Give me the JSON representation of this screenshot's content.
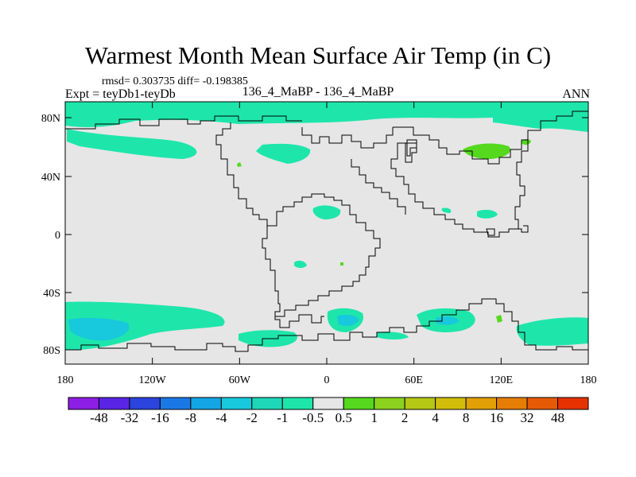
{
  "title": "Warmest Month Mean Surface Air Temp (in C)",
  "stats": "rmsd= 0.303735 diff= -0.198385",
  "experiment": "Expt = teyDb1-teyDb",
  "run_label": "136_4_MaBP - 136_4_MaBP",
  "season": "ANN",
  "map": {
    "lat_ticks": [
      "80N",
      "40N",
      "0",
      "40S",
      "80S"
    ],
    "lon_ticks": [
      "180",
      "120W",
      "60W",
      "0",
      "60E",
      "120E",
      "180"
    ],
    "background_color": "#e6e6e6",
    "coastline_color": "#000000"
  },
  "colorbar": {
    "colors": [
      "#8d1ee6",
      "#5a24e6",
      "#2a44dc",
      "#1a78e6",
      "#14a5e6",
      "#18c8dc",
      "#1ed7b8",
      "#1ee6aa",
      "#e6e6e6",
      "#55d81e",
      "#8cd21e",
      "#b4c814",
      "#d2be0a",
      "#e1a005",
      "#e67d05",
      "#e65a05",
      "#e63200"
    ],
    "labels": [
      "-48",
      "-32",
      "-16",
      "-8",
      "-4",
      "-2",
      "-1",
      "-0.5",
      "0.5",
      "1",
      "2",
      "4",
      "8",
      "16",
      "32",
      "48"
    ]
  }
}
